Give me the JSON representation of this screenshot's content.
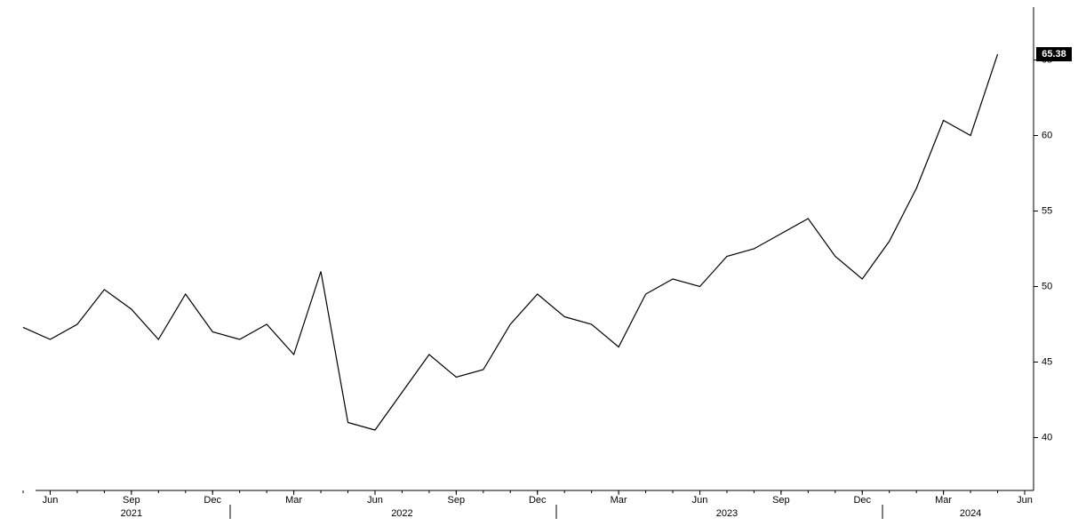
{
  "chart_data": {
    "type": "line",
    "x": [
      "2021-05",
      "2021-06",
      "2021-07",
      "2021-08",
      "2021-09",
      "2021-10",
      "2021-11",
      "2021-12",
      "2022-01",
      "2022-02",
      "2022-03",
      "2022-04",
      "2022-05",
      "2022-06",
      "2022-07",
      "2022-08",
      "2022-09",
      "2022-10",
      "2022-11",
      "2022-12",
      "2023-01",
      "2023-02",
      "2023-03",
      "2023-04",
      "2023-05",
      "2023-06",
      "2023-07",
      "2023-08",
      "2023-09",
      "2023-10",
      "2023-11",
      "2023-12",
      "2024-01",
      "2024-02",
      "2024-03",
      "2024-04",
      "2024-05"
    ],
    "series": [
      {
        "color": "#000000",
        "values": [
          47.3,
          46.5,
          47.5,
          49.8,
          48.5,
          46.5,
          49.5,
          47.0,
          46.5,
          47.5,
          45.5,
          51.0,
          41.0,
          40.5,
          43.0,
          45.5,
          44.0,
          44.5,
          47.5,
          49.5,
          48.0,
          47.5,
          46.0,
          49.5,
          50.5,
          50.0,
          52.0,
          52.5,
          53.5,
          54.5,
          52.0,
          50.5,
          53.0,
          56.5,
          61.0,
          60.0,
          65.38
        ]
      }
    ],
    "xlim": [
      "2021-05",
      "2024-06"
    ],
    "xticks": [
      {
        "value": "2021-06",
        "label": "Jun"
      },
      {
        "value": "2021-09",
        "label": "Sep"
      },
      {
        "value": "2021-12",
        "label": "Dec"
      },
      {
        "value": "2022-03",
        "label": "Mar"
      },
      {
        "value": "2022-06",
        "label": "Jun"
      },
      {
        "value": "2022-09",
        "label": "Sep"
      },
      {
        "value": "2022-12",
        "label": "Dec"
      },
      {
        "value": "2023-03",
        "label": "Mar"
      },
      {
        "value": "2023-06",
        "label": "Jun"
      },
      {
        "value": "2023-09",
        "label": "Sep"
      },
      {
        "value": "2023-12",
        "label": "Dec"
      },
      {
        "value": "2024-03",
        "label": "Mar"
      },
      {
        "value": "2024-06",
        "label": "Jun"
      }
    ],
    "year_labels": [
      {
        "value": "2021-09",
        "label": "2021"
      },
      {
        "value": "2022-07",
        "label": "2022"
      },
      {
        "value": "2023-07",
        "label": "2023"
      },
      {
        "value": "2024-04",
        "label": "2024"
      }
    ],
    "ylim": [
      36.5,
      68.5
    ],
    "yticks": [
      40,
      45,
      50,
      55,
      60,
      65
    ],
    "y_axis_side": "right"
  }
}
